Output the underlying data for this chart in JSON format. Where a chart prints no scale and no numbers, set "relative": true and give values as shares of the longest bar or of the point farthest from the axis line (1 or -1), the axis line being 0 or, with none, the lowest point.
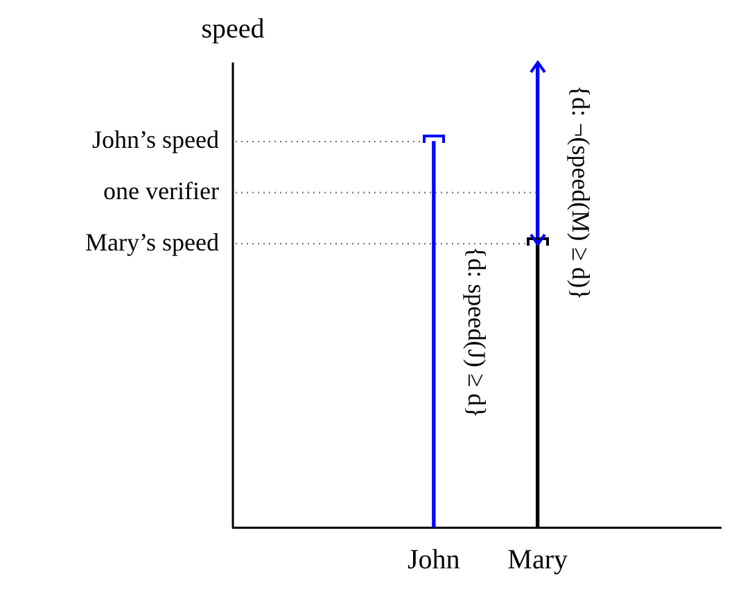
{
  "chart_data": {
    "type": "bar",
    "stacked": true,
    "categories": [
      "John",
      "Mary"
    ],
    "relative": true,
    "series": [
      {
        "values": [
          0.83,
          0.61
        ],
        "colors": [
          "#0000ff",
          "#000000"
        ]
      },
      {
        "values": [
          null,
          0.39
        ],
        "color": "#0000ff"
      }
    ],
    "ref_lines": [
      {
        "axis": "y",
        "value": 0.83,
        "label": "John’s speed",
        "line_style": "dotted"
      },
      {
        "axis": "y",
        "value": 0.72,
        "label": "one verifier",
        "line_style": "dotted"
      },
      {
        "axis": "y",
        "value": 0.61,
        "label": "Mary’s speed",
        "line_style": "dotted"
      }
    ],
    "annotations": [
      "speed",
      {
        "text": "{d: speed(J) ≥ d}",
        "x": "John",
        "y": 0.42
      },
      {
        "text": "{d: ¬(speed(M) ≥ d)}",
        "x": "Mary",
        "y": 0.72
      }
    ],
    "grid": false,
    "legend": false
  }
}
